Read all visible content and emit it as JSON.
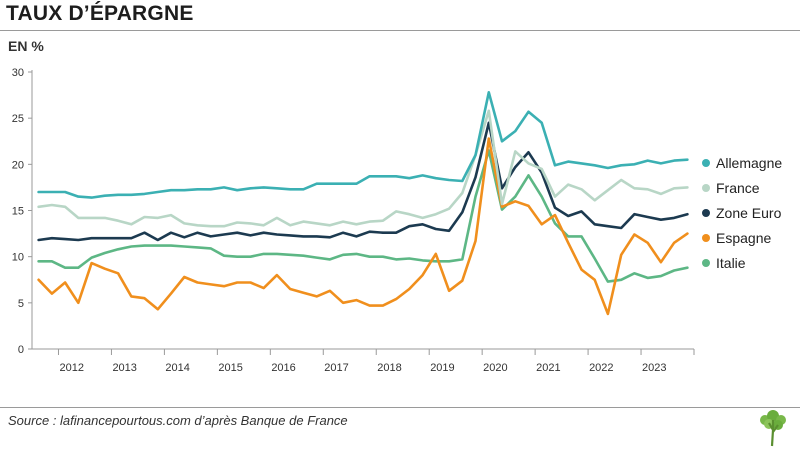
{
  "title": "TAUX D’ÉPARGNE",
  "unit": "EN %",
  "source": "Source : lafinancepourtous.com d’après Banque de France",
  "chart_data": {
    "type": "line",
    "title": "TAUX D’ÉPARGNE",
    "ylabel": "EN %",
    "xlabel": "",
    "ylim": [
      0,
      30
    ],
    "xlim": [
      2011.5,
      2024.0
    ],
    "yticks": [
      0,
      5,
      10,
      15,
      20,
      25,
      30
    ],
    "xtick_labels": [
      "2012",
      "2013",
      "2014",
      "2015",
      "2016",
      "2017",
      "2018",
      "2019",
      "2020",
      "2021",
      "2022",
      "2023"
    ],
    "xtick_positions": [
      2012.25,
      2013.25,
      2014.25,
      2015.25,
      2016.25,
      2017.25,
      2018.25,
      2019.25,
      2020.25,
      2021.25,
      2022.25,
      2023.25
    ],
    "x": [
      2011.625,
      2011.875,
      2012.125,
      2012.375,
      2012.625,
      2012.875,
      2013.125,
      2013.375,
      2013.625,
      2013.875,
      2014.125,
      2014.375,
      2014.625,
      2014.875,
      2015.125,
      2015.375,
      2015.625,
      2015.875,
      2016.125,
      2016.375,
      2016.625,
      2016.875,
      2017.125,
      2017.375,
      2017.625,
      2017.875,
      2018.125,
      2018.375,
      2018.625,
      2018.875,
      2019.125,
      2019.375,
      2019.625,
      2019.875,
      2020.125,
      2020.375,
      2020.625,
      2020.875,
      2021.125,
      2021.375,
      2021.625,
      2021.875,
      2022.125,
      2022.375,
      2022.625,
      2022.875,
      2023.125,
      2023.375,
      2023.625,
      2023.875
    ],
    "series": [
      {
        "name": "Allemagne",
        "color": "#3bb0b3",
        "values": [
          17.0,
          17.0,
          17.0,
          16.5,
          16.4,
          16.6,
          16.7,
          16.7,
          16.8,
          17.0,
          17.2,
          17.2,
          17.3,
          17.3,
          17.5,
          17.2,
          17.4,
          17.5,
          17.4,
          17.3,
          17.3,
          17.9,
          17.9,
          17.9,
          17.9,
          18.7,
          18.7,
          18.7,
          18.5,
          18.8,
          18.5,
          18.3,
          18.2,
          21.0,
          27.8,
          22.5,
          23.6,
          25.7,
          24.5,
          19.9,
          20.3,
          20.1,
          19.9,
          19.6,
          19.9,
          20.0,
          20.4,
          20.1,
          20.4,
          20.5
        ]
      },
      {
        "name": "France",
        "color": "#b8d6c6",
        "values": [
          15.4,
          15.6,
          15.4,
          14.2,
          14.2,
          14.2,
          13.9,
          13.5,
          14.3,
          14.2,
          14.5,
          13.6,
          13.4,
          13.3,
          13.3,
          13.7,
          13.6,
          13.4,
          14.2,
          13.4,
          13.8,
          13.6,
          13.4,
          13.8,
          13.5,
          13.8,
          13.9,
          14.9,
          14.6,
          14.2,
          14.6,
          15.2,
          16.9,
          21.0,
          25.8,
          15.7,
          21.4,
          20.1,
          19.5,
          16.5,
          17.8,
          17.3,
          16.1,
          17.2,
          18.3,
          17.4,
          17.3,
          16.8,
          17.4,
          17.5
        ]
      },
      {
        "name": "Zone Euro",
        "color": "#1c3a50",
        "values": [
          11.8,
          12.0,
          11.9,
          11.8,
          12.0,
          12.0,
          12.0,
          12.0,
          12.6,
          11.8,
          12.6,
          12.1,
          12.6,
          12.2,
          12.4,
          12.6,
          12.3,
          12.6,
          12.4,
          12.3,
          12.2,
          12.2,
          12.1,
          12.6,
          12.2,
          12.7,
          12.6,
          12.6,
          13.3,
          13.5,
          13.0,
          12.8,
          14.8,
          18.6,
          24.5,
          17.4,
          19.7,
          21.3,
          19.1,
          15.3,
          14.4,
          14.9,
          13.5,
          13.3,
          13.1,
          14.6,
          14.3,
          14.0,
          14.2,
          14.6
        ]
      },
      {
        "name": "Espagne",
        "color": "#f08f1d",
        "values": [
          7.5,
          6.0,
          7.2,
          5.0,
          9.3,
          8.7,
          8.2,
          5.7,
          5.5,
          4.3,
          6.0,
          7.8,
          7.2,
          7.0,
          6.8,
          7.2,
          7.2,
          6.6,
          8.0,
          6.5,
          6.1,
          5.7,
          6.3,
          5.0,
          5.3,
          4.7,
          4.7,
          5.4,
          6.5,
          8.0,
          10.3,
          6.3,
          7.4,
          11.7,
          22.8,
          15.4,
          16.0,
          15.5,
          13.5,
          14.5,
          11.5,
          8.6,
          7.5,
          3.8,
          10.2,
          12.4,
          11.5,
          9.4,
          11.5,
          12.5
        ]
      },
      {
        "name": "Italie",
        "color": "#5db785",
        "values": [
          9.5,
          9.5,
          8.8,
          8.8,
          9.9,
          10.4,
          10.8,
          11.1,
          11.2,
          11.2,
          11.2,
          11.1,
          11.0,
          10.9,
          10.1,
          10.0,
          10.0,
          10.3,
          10.3,
          10.2,
          10.1,
          9.9,
          9.7,
          10.2,
          10.3,
          10.0,
          10.0,
          9.7,
          9.8,
          9.6,
          9.5,
          9.5,
          9.7,
          16.5,
          21.5,
          15.1,
          16.5,
          18.8,
          16.5,
          13.6,
          12.2,
          12.2,
          9.8,
          7.3,
          7.5,
          8.2,
          7.7,
          7.9,
          8.5,
          8.8
        ]
      }
    ]
  }
}
